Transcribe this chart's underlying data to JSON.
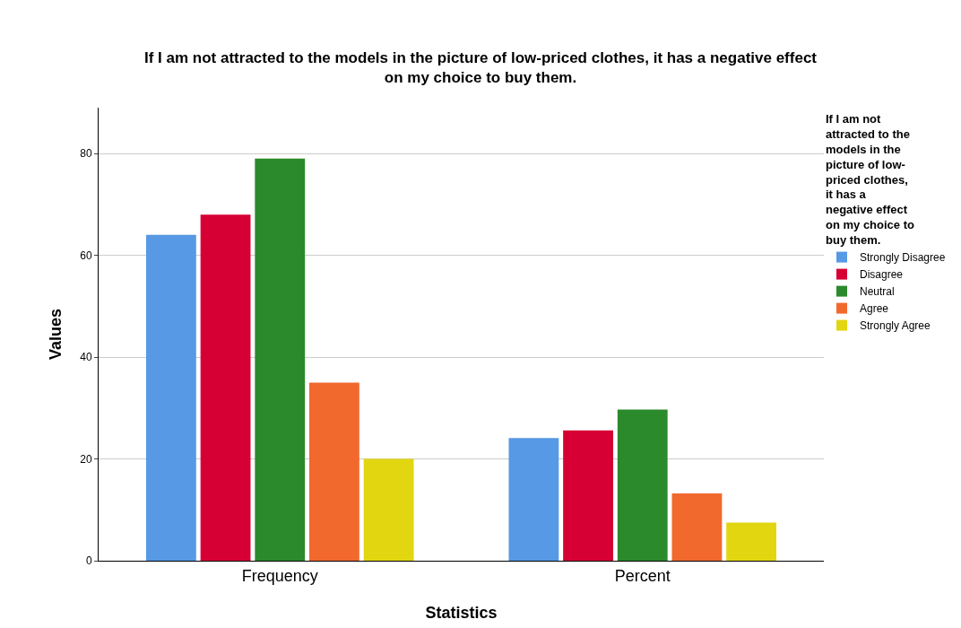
{
  "chart_data": {
    "type": "bar",
    "title": "If I am not attracted to the models in the picture of low-priced clothes, it has a negative effect on my choice to buy them.",
    "xlabel": "Statistics",
    "ylabel": "Values",
    "legend_title": "If I am not attracted to the models in the picture of low-priced clothes, it has a negative effect on my choice to buy them.",
    "categories": [
      "Frequency",
      "Percent"
    ],
    "series": [
      {
        "name": "Strongly Disagree",
        "color": "#5799e4",
        "values": [
          64,
          24.1
        ]
      },
      {
        "name": "Disagree",
        "color": "#d70034",
        "values": [
          68,
          25.6
        ]
      },
      {
        "name": "Neutral",
        "color": "#2b8a2b",
        "values": [
          79,
          29.7
        ]
      },
      {
        "name": "Agree",
        "color": "#f2692e",
        "values": [
          35,
          13.2
        ]
      },
      {
        "name": "Strongly Agree",
        "color": "#e2d611",
        "values": [
          20,
          7.5
        ]
      }
    ],
    "ylim": [
      0,
      89
    ],
    "yticks": [
      0,
      20,
      40,
      60,
      80
    ],
    "grid": "y",
    "legend": "right"
  }
}
